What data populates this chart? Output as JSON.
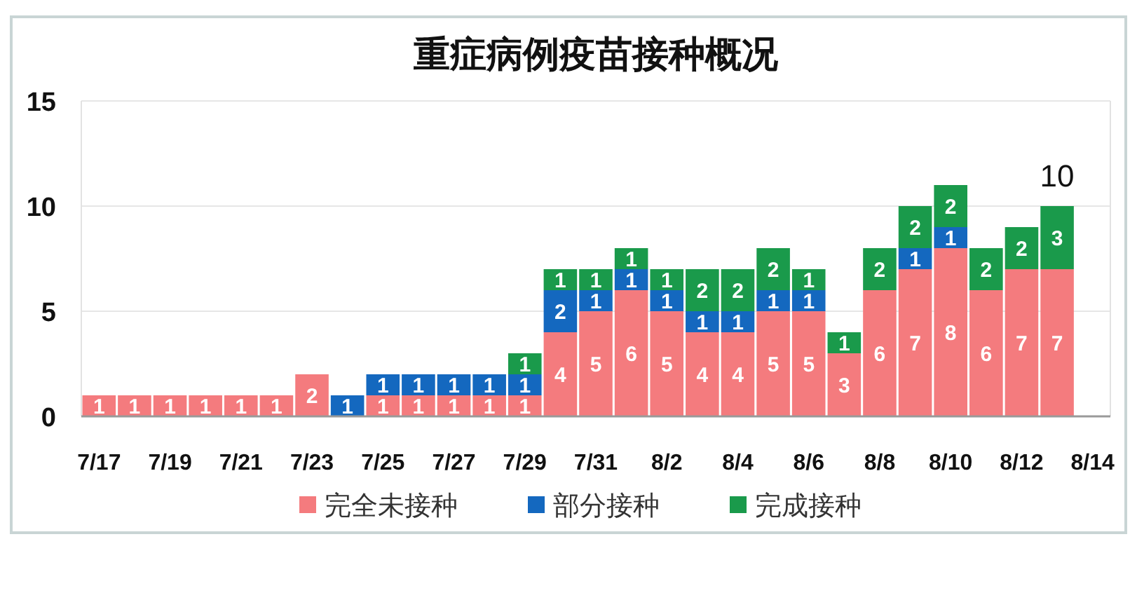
{
  "chart_data": {
    "type": "bar",
    "title": "重症病例疫苗接种概况",
    "stacked": true,
    "categories": [
      "7/17",
      null,
      "7/19",
      null,
      "7/21",
      null,
      "7/23",
      null,
      "7/25",
      null,
      "7/27",
      null,
      "7/29",
      null,
      "7/31",
      null,
      "8/2",
      null,
      "8/4",
      null,
      "8/6",
      null,
      "8/8",
      null,
      "8/10",
      null,
      "8/12",
      null,
      "8/14"
    ],
    "series": [
      {
        "name": "完全未接种",
        "color": "#f47b7e",
        "values": [
          1,
          1,
          1,
          1,
          1,
          1,
          2,
          null,
          1,
          1,
          1,
          1,
          1,
          4,
          5,
          6,
          5,
          4,
          4,
          5,
          5,
          3,
          6,
          7,
          8,
          6,
          7,
          7,
          null
        ]
      },
      {
        "name": "部分接种",
        "color": "#1468bf",
        "values": [
          null,
          null,
          null,
          null,
          null,
          null,
          null,
          1,
          1,
          1,
          1,
          1,
          1,
          2,
          1,
          1,
          1,
          1,
          1,
          1,
          1,
          null,
          null,
          1,
          1,
          null,
          null,
          null,
          null
        ]
      },
      {
        "name": "完成接种",
        "color": "#1a9a4b",
        "values": [
          null,
          null,
          null,
          null,
          null,
          null,
          null,
          null,
          null,
          null,
          null,
          null,
          1,
          1,
          1,
          1,
          1,
          2,
          2,
          2,
          1,
          1,
          2,
          2,
          2,
          2,
          2,
          3,
          null
        ]
      }
    ],
    "totals": [
      null,
      null,
      null,
      null,
      null,
      null,
      null,
      null,
      null,
      null,
      null,
      null,
      null,
      null,
      null,
      null,
      null,
      null,
      null,
      null,
      null,
      null,
      null,
      null,
      null,
      null,
      null,
      "10",
      null
    ],
    "ylim": [
      0,
      15
    ],
    "yticks": [
      0,
      5,
      10,
      15
    ],
    "grid": "y",
    "legend": "bottom",
    "data_labels": true
  }
}
